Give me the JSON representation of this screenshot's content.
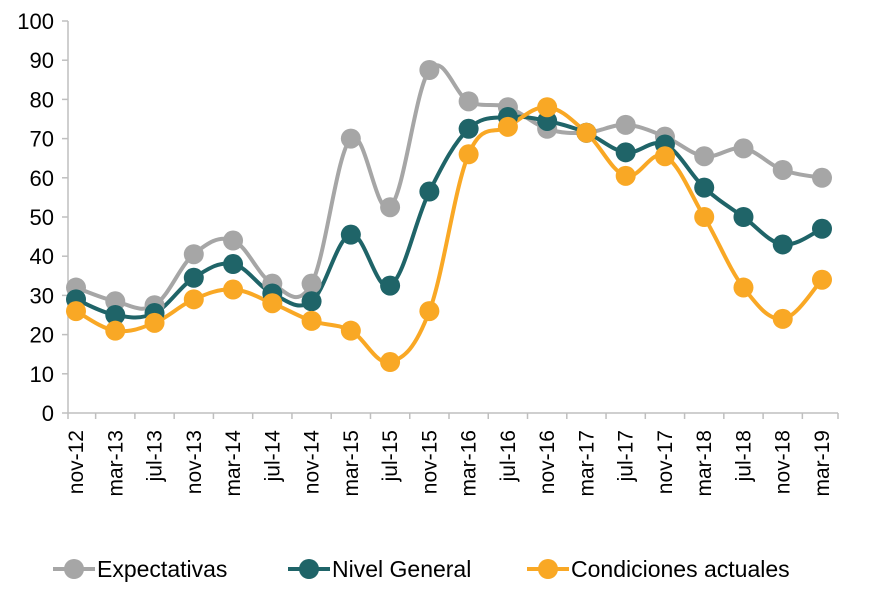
{
  "chart_data": {
    "type": "line",
    "title": "",
    "xlabel": "",
    "ylabel": "",
    "ylim": [
      0,
      100
    ],
    "y_ticks": [
      "0",
      "10",
      "20",
      "30",
      "40",
      "50",
      "60",
      "70",
      "80",
      "90",
      "100"
    ],
    "grid": false,
    "legend_position": "bottom",
    "categories": [
      "nov-12",
      "mar-13",
      "jul-13",
      "nov-13",
      "mar-14",
      "jul-14",
      "nov-14",
      "mar-15",
      "jul-15",
      "nov-15",
      "mar-16",
      "jul-16",
      "nov-16",
      "mar-17",
      "jul-17",
      "nov-17",
      "mar-18",
      "jul-18",
      "nov-18",
      "mar-19"
    ],
    "series": [
      {
        "name": "Expectativas",
        "color": "#a6a6a6",
        "values": [
          32,
          28.5,
          27.5,
          40.5,
          44,
          33,
          33,
          70,
          52.5,
          87.5,
          79.5,
          78,
          72.5,
          71.5,
          73.5,
          70.5,
          65.5,
          67.5,
          62,
          60
        ]
      },
      {
        "name": "Nivel General",
        "color": "#1f6468",
        "values": [
          29,
          25,
          25.5,
          34.5,
          38,
          30.5,
          28.5,
          45.5,
          32.5,
          56.5,
          72.5,
          75.5,
          74.5,
          71.5,
          66.5,
          68.5,
          57.5,
          50,
          43,
          47
        ]
      },
      {
        "name": "Condiciones actuales",
        "color": "#f9a825",
        "values": [
          26,
          21,
          23,
          29,
          31.5,
          28,
          23.5,
          21,
          13,
          26,
          66,
          73,
          78,
          71.5,
          60.5,
          65.5,
          50,
          32,
          24,
          34
        ]
      }
    ]
  }
}
